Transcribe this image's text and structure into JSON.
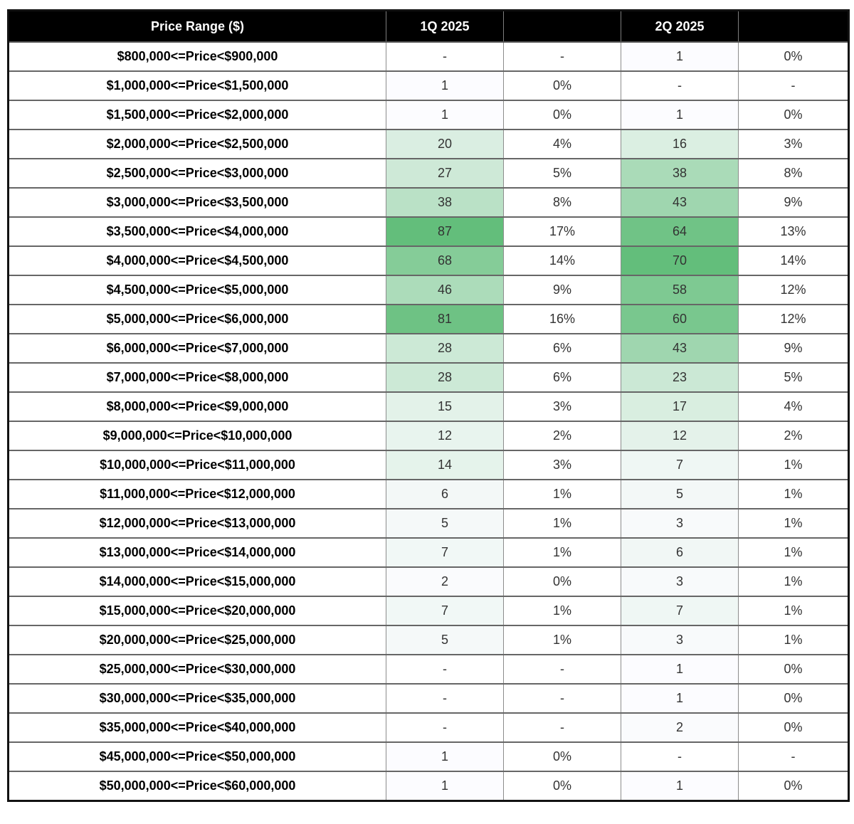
{
  "colors": {
    "header_bg": "#000000",
    "header_text": "#FFFFFF",
    "scale_min_color": "#FCFCFF",
    "scale_max_color": "#63BE7B",
    "grid_border": "#666666",
    "outer_border": "#121212"
  },
  "chart_data": {
    "type": "table",
    "title": "",
    "columns": [
      "Price Range ($)",
      "1Q 2025",
      "",
      "2Q 2025",
      ""
    ],
    "heatmap": {
      "style": "two-color scale per quarter count column",
      "min_color": "#FCFCFF",
      "max_color": "#63BE7B",
      "q1_min": 1,
      "q1_max": 87,
      "q2_min": 1,
      "q2_max": 70
    },
    "rows": [
      {
        "range": "$800,000<=Price<$900,000",
        "q1": "-",
        "q1_pct": "-",
        "q2": "1",
        "q2_pct": "0%",
        "q1_bg": "#FFFFFF",
        "q2_bg": "#FCFCFF"
      },
      {
        "range": "$1,000,000<=Price<$1,500,000",
        "q1": "1",
        "q1_pct": "0%",
        "q2": "-",
        "q2_pct": "-",
        "q1_bg": "#FCFCFF",
        "q2_bg": "#FFFFFF"
      },
      {
        "range": "$1,500,000<=Price<$2,000,000",
        "q1": "1",
        "q1_pct": "0%",
        "q2": "1",
        "q2_pct": "0%",
        "q1_bg": "#FCFCFF",
        "q2_bg": "#FCFCFF"
      },
      {
        "range": "$2,000,000<=Price<$2,500,000",
        "q1": "20",
        "q1_pct": "4%",
        "q2": "16",
        "q2_pct": "3%",
        "q1_bg": "#DAEEE2",
        "q2_bg": "#DBEFE2"
      },
      {
        "range": "$2,500,000<=Price<$3,000,000",
        "q1": "27",
        "q1_pct": "5%",
        "q2": "38",
        "q2_pct": "8%",
        "q1_bg": "#CEE9D7",
        "q2_bg": "#AADBB8"
      },
      {
        "range": "$3,000,000<=Price<$3,500,000",
        "q1": "38",
        "q1_pct": "8%",
        "q2": "43",
        "q2_pct": "9%",
        "q1_bg": "#BAE1C6",
        "q2_bg": "#9FD6AF"
      },
      {
        "range": "$3,500,000<=Price<$4,000,000",
        "q1": "87",
        "q1_pct": "17%",
        "q2": "64",
        "q2_pct": "13%",
        "q1_bg": "#63BE7B",
        "q2_bg": "#70C386"
      },
      {
        "range": "$4,000,000<=Price<$4,500,000",
        "q1": "68",
        "q1_pct": "14%",
        "q2": "70",
        "q2_pct": "14%",
        "q1_bg": "#85CC98",
        "q2_bg": "#63BE7B"
      },
      {
        "range": "$4,500,000<=Price<$5,000,000",
        "q1": "46",
        "q1_pct": "9%",
        "q2": "58",
        "q2_pct": "12%",
        "q1_bg": "#ACDCBA",
        "q2_bg": "#7EC992"
      },
      {
        "range": "$5,000,000<=Price<$6,000,000",
        "q1": "81",
        "q1_pct": "16%",
        "q2": "60",
        "q2_pct": "12%",
        "q1_bg": "#6EC284",
        "q2_bg": "#79C78E"
      },
      {
        "range": "$6,000,000<=Price<$7,000,000",
        "q1": "28",
        "q1_pct": "6%",
        "q2": "43",
        "q2_pct": "9%",
        "q1_bg": "#CCE9D6",
        "q2_bg": "#9FD6AF"
      },
      {
        "range": "$7,000,000<=Price<$8,000,000",
        "q1": "28",
        "q1_pct": "6%",
        "q2": "23",
        "q2_pct": "5%",
        "q1_bg": "#CCE9D6",
        "q2_bg": "#CBE8D5"
      },
      {
        "range": "$8,000,000<=Price<$9,000,000",
        "q1": "15",
        "q1_pct": "3%",
        "q2": "17",
        "q2_pct": "4%",
        "q1_bg": "#E3F2E9",
        "q2_bg": "#D9EEE0"
      },
      {
        "range": "$9,000,000<=Price<$10,000,000",
        "q1": "12",
        "q1_pct": "2%",
        "q2": "12",
        "q2_pct": "2%",
        "q1_bg": "#E8F4EE",
        "q2_bg": "#E4F2EA"
      },
      {
        "range": "$10,000,000<=Price<$11,000,000",
        "q1": "14",
        "q1_pct": "3%",
        "q2": "7",
        "q2_pct": "1%",
        "q1_bg": "#E5F3EB",
        "q2_bg": "#EFF7F4"
      },
      {
        "range": "$11,000,000<=Price<$12,000,000",
        "q1": "6",
        "q1_pct": "1%",
        "q2": "5",
        "q2_pct": "1%",
        "q1_bg": "#F3F8F7",
        "q2_bg": "#F3F8F7"
      },
      {
        "range": "$12,000,000<=Price<$13,000,000",
        "q1": "5",
        "q1_pct": "1%",
        "q2": "3",
        "q2_pct": "1%",
        "q1_bg": "#F5F9F9",
        "q2_bg": "#F8FAFB"
      },
      {
        "range": "$13,000,000<=Price<$14,000,000",
        "q1": "7",
        "q1_pct": "1%",
        "q2": "6",
        "q2_pct": "1%",
        "q1_bg": "#F1F8F6",
        "q2_bg": "#F1F7F5"
      },
      {
        "range": "$14,000,000<=Price<$15,000,000",
        "q1": "2",
        "q1_pct": "0%",
        "q2": "3",
        "q2_pct": "1%",
        "q1_bg": "#FAFBFD",
        "q2_bg": "#F8FAFB"
      },
      {
        "range": "$15,000,000<=Price<$20,000,000",
        "q1": "7",
        "q1_pct": "1%",
        "q2": "7",
        "q2_pct": "1%",
        "q1_bg": "#F1F8F6",
        "q2_bg": "#EFF7F4"
      },
      {
        "range": "$20,000,000<=Price<$25,000,000",
        "q1": "5",
        "q1_pct": "1%",
        "q2": "3",
        "q2_pct": "1%",
        "q1_bg": "#F5F9F9",
        "q2_bg": "#F8FAFB"
      },
      {
        "range": "$25,000,000<=Price<$30,000,000",
        "q1": "-",
        "q1_pct": "-",
        "q2": "1",
        "q2_pct": "0%",
        "q1_bg": "#FFFFFF",
        "q2_bg": "#FCFCFF"
      },
      {
        "range": "$30,000,000<=Price<$35,000,000",
        "q1": "-",
        "q1_pct": "-",
        "q2": "1",
        "q2_pct": "0%",
        "q1_bg": "#FFFFFF",
        "q2_bg": "#FCFCFF"
      },
      {
        "range": "$35,000,000<=Price<$40,000,000",
        "q1": "-",
        "q1_pct": "-",
        "q2": "2",
        "q2_pct": "0%",
        "q1_bg": "#FFFFFF",
        "q2_bg": "#FAFBFD"
      },
      {
        "range": "$45,000,000<=Price<$50,000,000",
        "q1": "1",
        "q1_pct": "0%",
        "q2": "-",
        "q2_pct": "-",
        "q1_bg": "#FCFCFF",
        "q2_bg": "#FFFFFF"
      },
      {
        "range": "$50,000,000<=Price<$60,000,000",
        "q1": "1",
        "q1_pct": "0%",
        "q2": "1",
        "q2_pct": "0%",
        "q1_bg": "#FCFCFF",
        "q2_bg": "#FCFCFF"
      }
    ]
  }
}
